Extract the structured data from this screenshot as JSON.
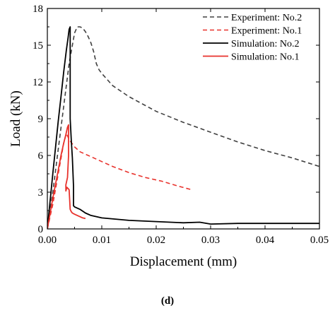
{
  "caption": "(d)",
  "chart_data": {
    "type": "line",
    "xlabel": "Displacement (mm)",
    "ylabel": "Load (kN)",
    "xlim": [
      0,
      0.05
    ],
    "ylim": [
      0,
      18
    ],
    "xticks": [
      0.0,
      0.01,
      0.02,
      0.03,
      0.04,
      0.05
    ],
    "xtick_labels": [
      "0.00",
      "0.01",
      "0.02",
      "0.03",
      "0.04",
      "0.05"
    ],
    "yticks": [
      0,
      3,
      6,
      9,
      12,
      15,
      18
    ],
    "ytick_labels": [
      "0",
      "3",
      "6",
      "9",
      "12",
      "15",
      "18"
    ],
    "grid": false,
    "legend_position": "top-right",
    "series": [
      {
        "name": "Experiment: No.2",
        "color": "#404040",
        "style": "dashed",
        "x": [
          0.0,
          0.001,
          0.002,
          0.003,
          0.004,
          0.005,
          0.0055,
          0.006,
          0.0065,
          0.007,
          0.0075,
          0.008,
          0.0085,
          0.009,
          0.0095,
          0.01,
          0.012,
          0.015,
          0.02,
          0.025,
          0.03,
          0.035,
          0.04,
          0.045,
          0.05
        ],
        "y": [
          0.0,
          3.0,
          6.5,
          10.0,
          13.5,
          16.0,
          16.5,
          16.5,
          16.4,
          16.1,
          15.7,
          15.2,
          14.5,
          13.5,
          13.0,
          12.7,
          11.7,
          10.8,
          9.6,
          8.7,
          7.9,
          7.1,
          6.4,
          5.8,
          5.1
        ]
      },
      {
        "name": "Experiment: No.1",
        "color": "#e8322c",
        "style": "dashed",
        "x": [
          0.0,
          0.001,
          0.002,
          0.003,
          0.0035,
          0.004,
          0.005,
          0.006,
          0.008,
          0.01,
          0.012,
          0.015,
          0.018,
          0.021,
          0.024,
          0.0265
        ],
        "y": [
          0.0,
          2.0,
          4.5,
          7.0,
          7.8,
          7.3,
          6.7,
          6.3,
          5.9,
          5.5,
          5.1,
          4.6,
          4.2,
          3.9,
          3.5,
          3.2
        ]
      },
      {
        "name": "Simulation: No.2",
        "color": "#000000",
        "style": "solid",
        "x": [
          0.0,
          0.001,
          0.002,
          0.0025,
          0.003,
          0.0035,
          0.0038,
          0.004,
          0.0042,
          0.0042,
          0.0044,
          0.0046,
          0.0048,
          0.0048,
          0.005,
          0.006,
          0.007,
          0.008,
          0.01,
          0.015,
          0.02,
          0.025,
          0.028,
          0.03,
          0.035,
          0.04,
          0.045,
          0.05
        ],
        "y": [
          0.0,
          4.5,
          8.8,
          10.8,
          12.8,
          14.6,
          15.6,
          16.3,
          16.5,
          9.0,
          7.2,
          5.8,
          3.5,
          1.9,
          1.8,
          1.6,
          1.3,
          1.1,
          0.9,
          0.7,
          0.6,
          0.5,
          0.55,
          0.4,
          0.45,
          0.45,
          0.45,
          0.45
        ]
      },
      {
        "name": "Simulation: No.1",
        "color": "#e8322c",
        "style": "solid",
        "x": [
          0.0,
          0.001,
          0.002,
          0.0025,
          0.003,
          0.0034,
          0.0037,
          0.0039,
          0.0039,
          0.0037,
          0.0034,
          0.0034,
          0.0036,
          0.004,
          0.0042,
          0.0044,
          0.0046,
          0.005,
          0.0055,
          0.006,
          0.0065,
          0.007
        ],
        "y": [
          0.0,
          2.5,
          4.8,
          6.0,
          7.0,
          7.7,
          8.3,
          8.5,
          6.0,
          4.2,
          3.6,
          3.1,
          3.4,
          3.2,
          1.6,
          1.4,
          1.3,
          1.2,
          1.1,
          1.0,
          0.9,
          0.85
        ]
      }
    ]
  }
}
